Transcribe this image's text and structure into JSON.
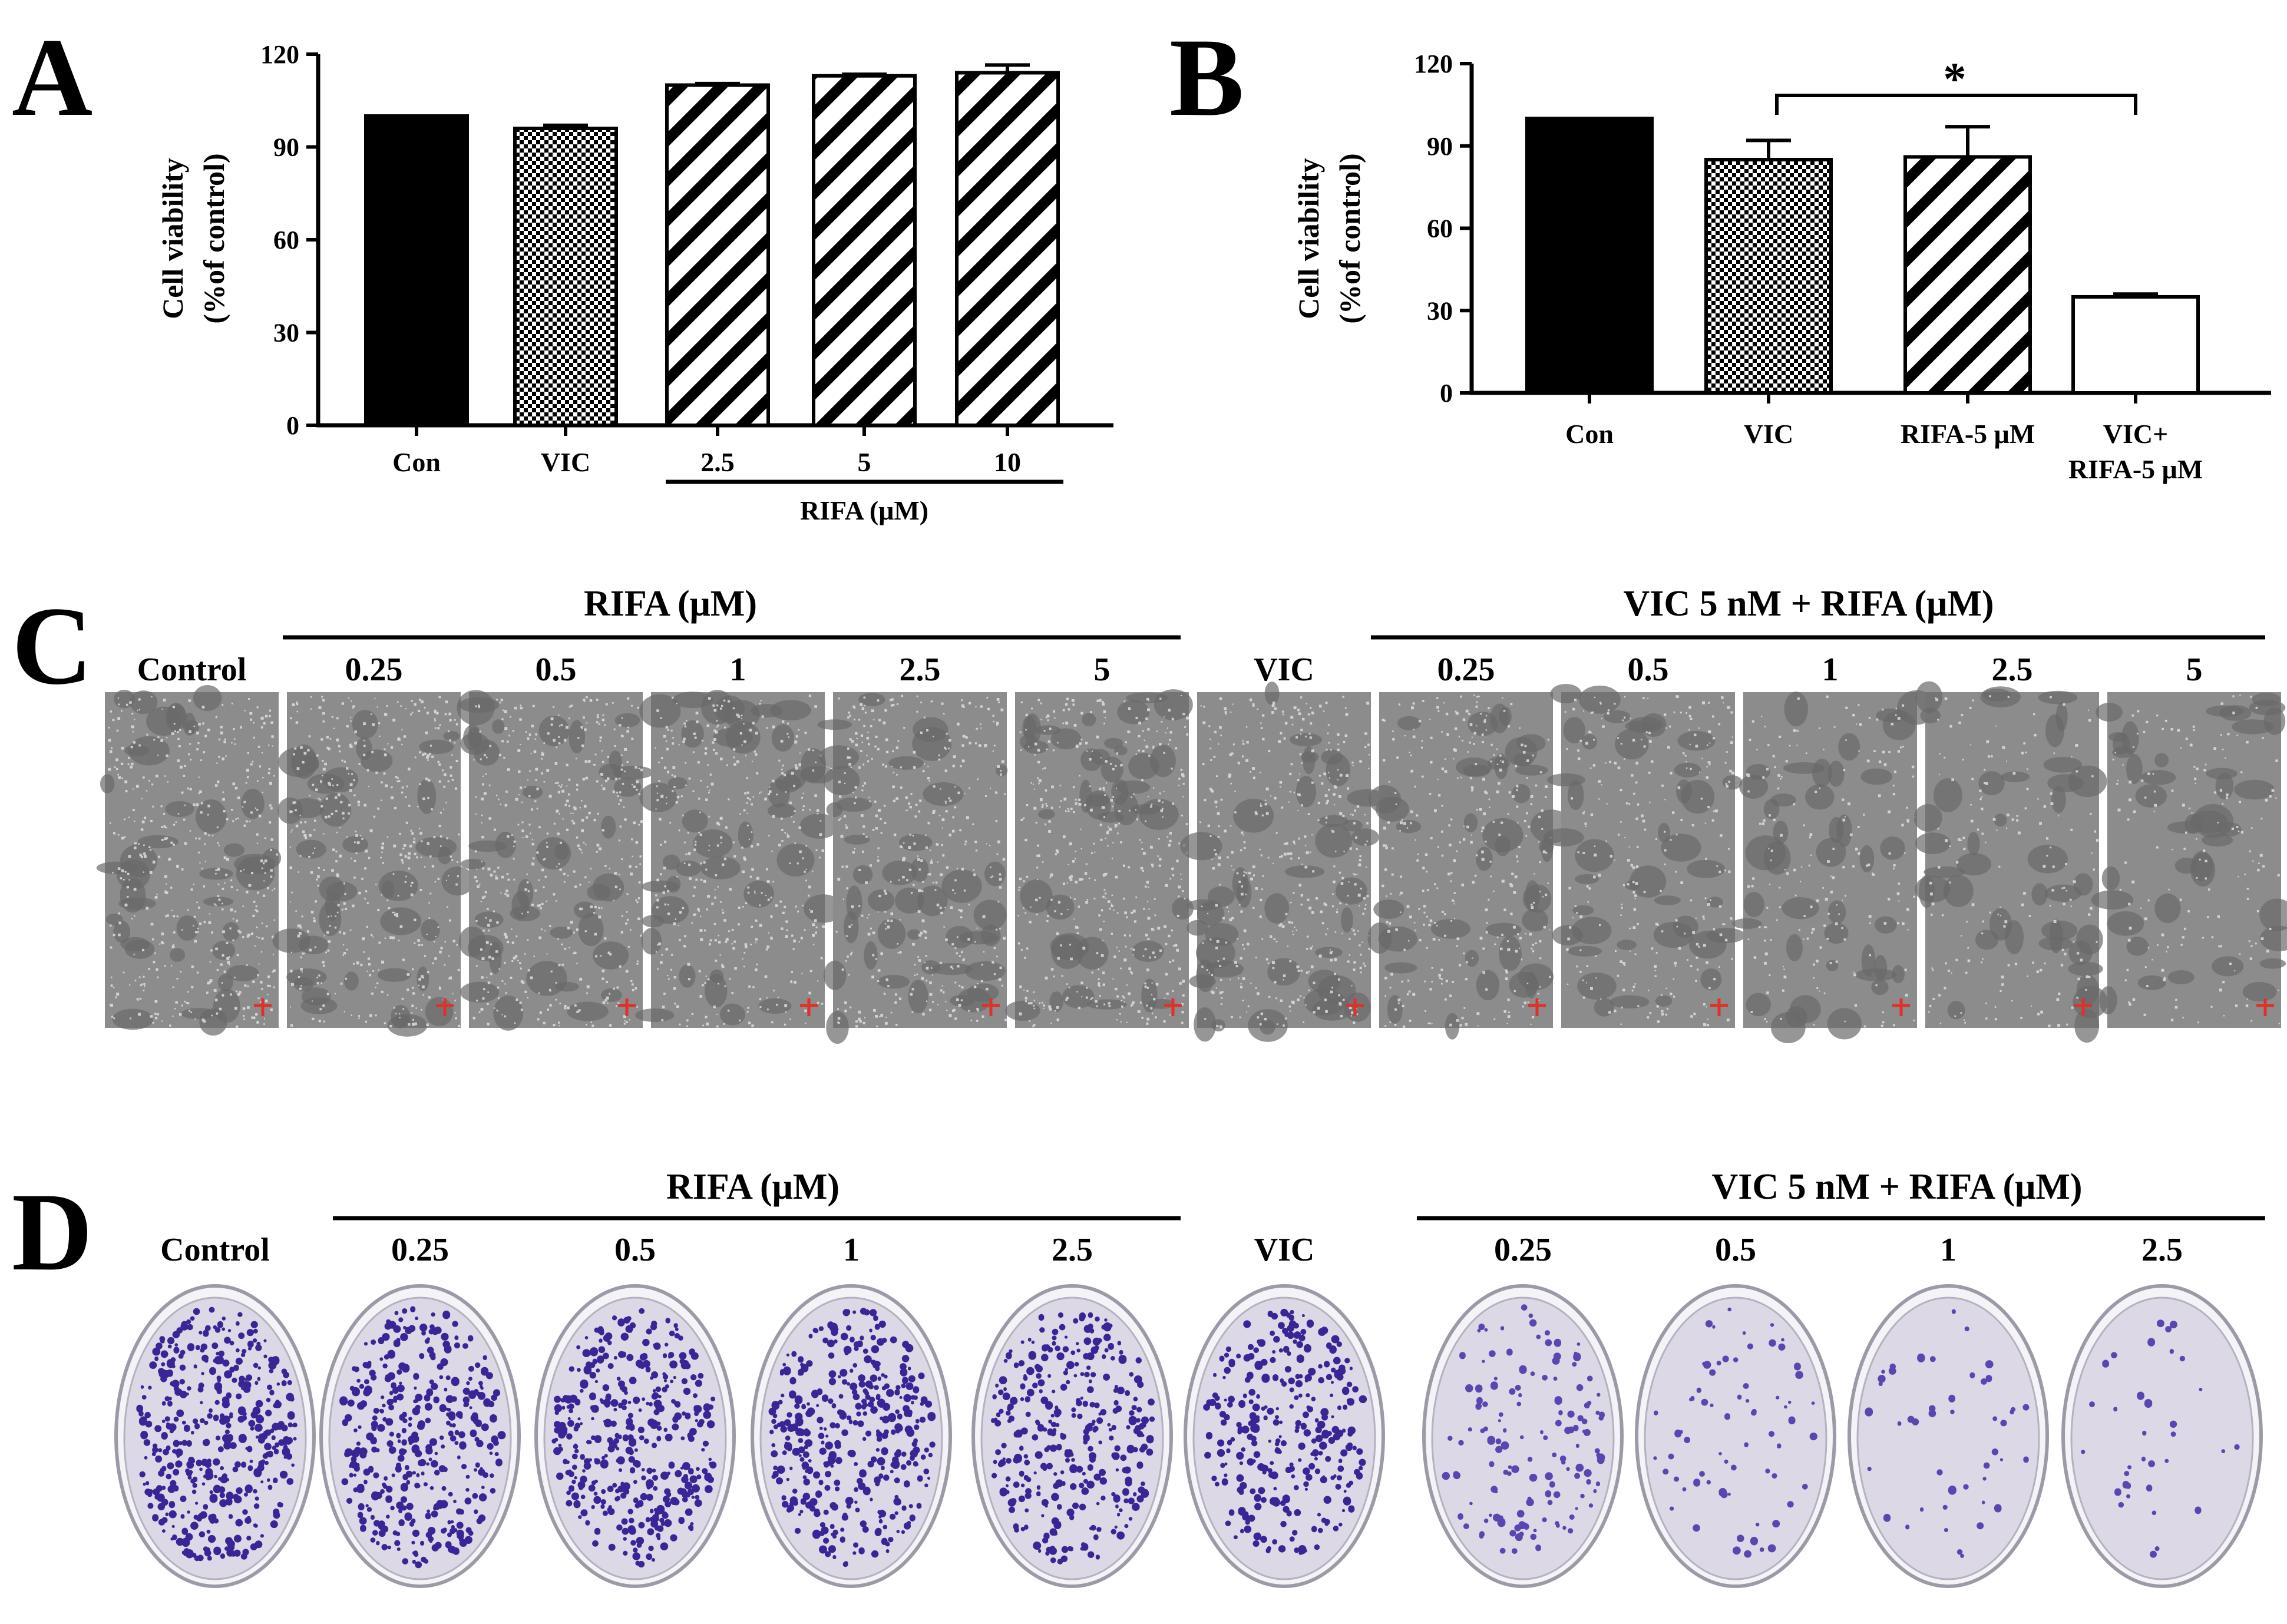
{
  "colors": {
    "solid": "#000000",
    "axis": "#000000",
    "micro_bg": "#8c8c8c",
    "micro_dark": "#6a6a6a",
    "micro_cell": "#dedede",
    "scale_bar": "#e0302a",
    "dish_bg": "#dcd8e6",
    "colony": "#3b2596",
    "colony_light": "#5a46b0"
  },
  "panel_a": {
    "letter": "A",
    "ylabel_line1": "Cell viability",
    "ylabel_line2": "(%of control)",
    "group_label": "RIFA (μM)",
    "chart_data": {
      "type": "bar",
      "categories": [
        "Con",
        "VIC",
        "2.5",
        "5",
        "10"
      ],
      "values": [
        100,
        96,
        110,
        113,
        114
      ],
      "errors": [
        0,
        1,
        0.5,
        0.5,
        2.5
      ],
      "patterns": [
        "solid",
        "checker",
        "hatch",
        "hatch",
        "hatch"
      ],
      "yticks": [
        "0",
        "30",
        "60",
        "90",
        "120"
      ],
      "ylim": [
        0,
        120
      ],
      "ylabel": "Cell viability (%of control)",
      "xgroup": "RIFA (μM)"
    }
  },
  "panel_b": {
    "letter": "B",
    "ylabel_line1": "Cell viability",
    "ylabel_line2": "(%of control)",
    "sig_label": "*",
    "chart_data": {
      "type": "bar",
      "categories": [
        "Con",
        "VIC",
        "RIFA-5 μM",
        "VIC+|RIFA-5 μM"
      ],
      "values": [
        100,
        85,
        86,
        35
      ],
      "errors": [
        0,
        7,
        11,
        1
      ],
      "patterns": [
        "solid",
        "checker",
        "hatch",
        "empty"
      ],
      "yticks": [
        "0",
        "30",
        "60",
        "90",
        "120"
      ],
      "ylim": [
        0,
        120
      ],
      "ylabel": "Cell viability (%of control)",
      "significance": {
        "from": "VIC",
        "to": "VIC+|RIFA-5 μM",
        "label": "*"
      }
    }
  },
  "panel_c": {
    "letter": "C",
    "group1": "RIFA (μM)",
    "group2": "VIC 5 nM + RIFA (μM)",
    "columns": [
      {
        "label": "Control",
        "density": 0.55
      },
      {
        "label": "0.25",
        "density": 0.55
      },
      {
        "label": "0.5",
        "density": 0.55
      },
      {
        "label": "1",
        "density": 0.5
      },
      {
        "label": "2.5",
        "density": 0.5
      },
      {
        "label": "5",
        "density": 0.55
      },
      {
        "label": "VIC",
        "density": 0.5
      },
      {
        "label": "0.25",
        "density": 0.4
      },
      {
        "label": "0.5",
        "density": 0.32
      },
      {
        "label": "1",
        "density": 0.22
      },
      {
        "label": "2.5",
        "density": 0.2
      },
      {
        "label": "5",
        "density": 0.18
      }
    ]
  },
  "panel_d": {
    "letter": "D",
    "group1": "RIFA (μM)",
    "group2": "VIC 5 nM + RIFA (μM)",
    "columns": [
      {
        "label": "Control",
        "colonies": 420
      },
      {
        "label": "0.25",
        "colonies": 380
      },
      {
        "label": "0.5",
        "colonies": 400
      },
      {
        "label": "1",
        "colonies": 380
      },
      {
        "label": "2.5",
        "colonies": 330
      },
      {
        "label": "VIC",
        "colonies": 300
      },
      {
        "label": "0.25",
        "colonies": 140
      },
      {
        "label": "0.5",
        "colonies": 70
      },
      {
        "label": "1",
        "colonies": 45
      },
      {
        "label": "2.5",
        "colonies": 35
      }
    ]
  }
}
